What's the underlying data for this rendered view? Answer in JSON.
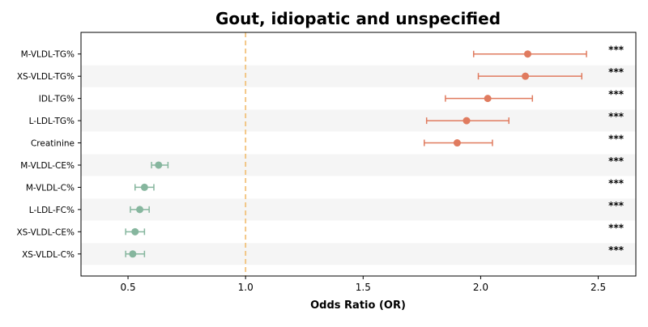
{
  "chart_data": {
    "type": "forest",
    "title": "Gout, idiopatic and unspecified",
    "xlabel": "Odds Ratio (OR)",
    "ylabel": "",
    "xlim": [
      0.3,
      2.66
    ],
    "xticks": [
      0.5,
      1.0,
      1.5,
      2.0,
      2.5
    ],
    "xtick_labels": [
      "0.5",
      "1.0",
      "1.5",
      "2.0",
      "2.5"
    ],
    "reference_line": 1.0,
    "significance_label": "***",
    "row_banding": true,
    "colors": {
      "risk": "#E07B5F",
      "protective": "#86B69E",
      "reference": "#F2C27B",
      "band": "#F5F5F5",
      "axis": "#000000"
    },
    "rows": [
      {
        "label": "M-VLDL-TG%",
        "or": 2.2,
        "ci_low": 1.97,
        "ci_high": 2.45,
        "direction": "risk",
        "sig": "***"
      },
      {
        "label": "XS-VLDL-TG%",
        "or": 2.19,
        "ci_low": 1.99,
        "ci_high": 2.43,
        "direction": "risk",
        "sig": "***"
      },
      {
        "label": "IDL-TG%",
        "or": 2.03,
        "ci_low": 1.85,
        "ci_high": 2.22,
        "direction": "risk",
        "sig": "***"
      },
      {
        "label": "L-LDL-TG%",
        "or": 1.94,
        "ci_low": 1.77,
        "ci_high": 2.12,
        "direction": "risk",
        "sig": "***"
      },
      {
        "label": "Creatinine",
        "or": 1.9,
        "ci_low": 1.76,
        "ci_high": 2.05,
        "direction": "risk",
        "sig": "***"
      },
      {
        "label": "M-VLDL-CE%",
        "or": 0.63,
        "ci_low": 0.6,
        "ci_high": 0.67,
        "direction": "protective",
        "sig": "***"
      },
      {
        "label": "M-VLDL-C%",
        "or": 0.57,
        "ci_low": 0.53,
        "ci_high": 0.61,
        "direction": "protective",
        "sig": "***"
      },
      {
        "label": "L-LDL-FC%",
        "or": 0.55,
        "ci_low": 0.51,
        "ci_high": 0.59,
        "direction": "protective",
        "sig": "***"
      },
      {
        "label": "XS-VLDL-CE%",
        "or": 0.53,
        "ci_low": 0.49,
        "ci_high": 0.57,
        "direction": "protective",
        "sig": "***"
      },
      {
        "label": "XS-VLDL-C%",
        "or": 0.52,
        "ci_low": 0.49,
        "ci_high": 0.57,
        "direction": "protective",
        "sig": "***"
      }
    ]
  }
}
